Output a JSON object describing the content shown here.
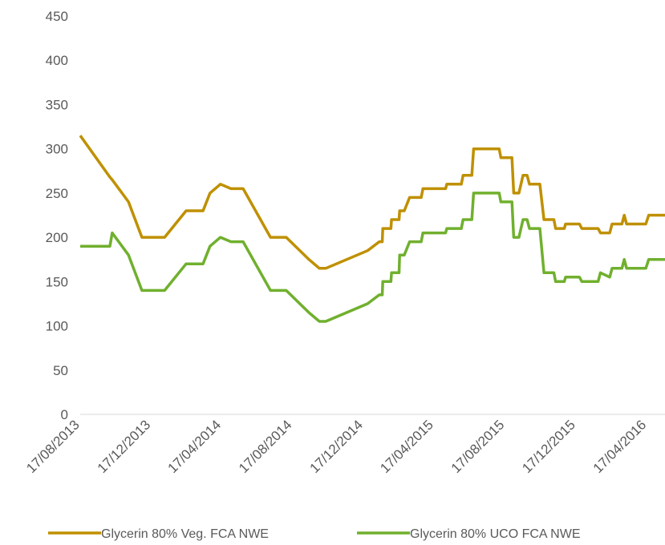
{
  "chart_data": {
    "type": "line",
    "x": [
      "17/08/2013",
      "07/10/2013",
      "11/10/2013",
      "08/11/2013",
      "01/12/2013",
      "09/01/2014",
      "15/02/2014",
      "16/03/2014",
      "28/03/2014",
      "15/04/2014",
      "03/05/2014",
      "24/05/2014",
      "10/07/2014",
      "06/08/2014",
      "14/09/2014",
      "02/10/2014",
      "13/10/2014",
      "24/12/2014",
      "13/01/2015",
      "18/01/2015",
      "19/01/2015",
      "02/02/2015",
      "03/02/2015",
      "16/02/2015",
      "17/02/2015",
      "25/02/2015",
      "06/03/2015",
      "26/03/2015",
      "29/03/2015",
      "07/05/2015",
      "09/05/2015",
      "03/06/2015",
      "06/06/2015",
      "21/06/2015",
      "24/06/2015",
      "07/08/2015",
      "10/08/2015",
      "29/08/2015",
      "01/09/2015",
      "10/09/2015",
      "17/09/2015",
      "24/09/2015",
      "28/09/2015",
      "16/10/2015",
      "23/10/2015",
      "09/11/2015",
      "12/11/2015",
      "27/11/2015",
      "29/11/2015",
      "23/12/2015",
      "27/12/2015",
      "24/01/2016",
      "28/01/2016",
      "13/02/2016",
      "17/02/2016",
      "05/03/2016",
      "09/03/2016",
      "13/03/2016",
      "15/04/2016",
      "20/04/2016",
      "18/05/2016"
    ],
    "series": [
      {
        "name": "Glycerin 80% Veg. FCA NWE",
        "color": "#bf9000",
        "values": [
          315,
          268,
          265,
          240,
          200,
          200,
          230,
          230,
          250,
          260,
          255,
          255,
          200,
          200,
          175,
          165,
          165,
          185,
          195,
          195,
          210,
          210,
          220,
          220,
          230,
          230,
          245,
          245,
          255,
          255,
          260,
          260,
          270,
          270,
          300,
          300,
          290,
          290,
          250,
          250,
          270,
          270,
          260,
          260,
          220,
          220,
          210,
          210,
          215,
          215,
          210,
          210,
          205,
          205,
          215,
          215,
          225,
          215,
          215,
          225,
          225
        ]
      },
      {
        "name": "Glycerin 80% UCO FCA NWE",
        "color": "#70b02e",
        "values": [
          190,
          190,
          205,
          180,
          140,
          140,
          170,
          170,
          190,
          200,
          195,
          195,
          140,
          140,
          115,
          105,
          105,
          125,
          135,
          135,
          150,
          150,
          160,
          160,
          180,
          180,
          195,
          195,
          205,
          205,
          210,
          210,
          220,
          220,
          250,
          250,
          240,
          240,
          200,
          200,
          220,
          220,
          210,
          210,
          160,
          160,
          150,
          150,
          155,
          155,
          150,
          150,
          160,
          155,
          165,
          165,
          175,
          165,
          165,
          175,
          175
        ]
      }
    ],
    "xlim": [
      "17/08/2013",
      "18/05/2016"
    ],
    "xticks": [
      "17/08/2013",
      "17/12/2013",
      "17/04/2014",
      "17/08/2014",
      "17/12/2014",
      "17/04/2015",
      "17/08/2015",
      "17/12/2015",
      "17/04/2016"
    ],
    "ylim": [
      0,
      450
    ],
    "yticks": [
      0,
      50,
      100,
      150,
      200,
      250,
      300,
      350,
      400,
      450
    ],
    "legend": "bottom"
  }
}
